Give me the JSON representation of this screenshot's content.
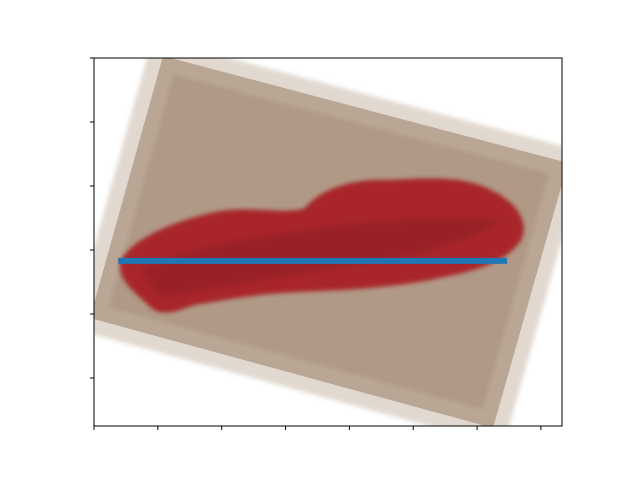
{
  "chart_data": {
    "type": "line",
    "x": [
      38,
      647
    ],
    "values": [
      317,
      317
    ],
    "color": "#1f77b4",
    "xlim": [
      0,
      733
    ],
    "ylim": [
      575,
      0
    ],
    "xticks": [
      0,
      100,
      200,
      300,
      400,
      500,
      600,
      700
    ],
    "yticks": [
      0,
      100,
      200,
      300,
      400,
      500
    ]
  }
}
